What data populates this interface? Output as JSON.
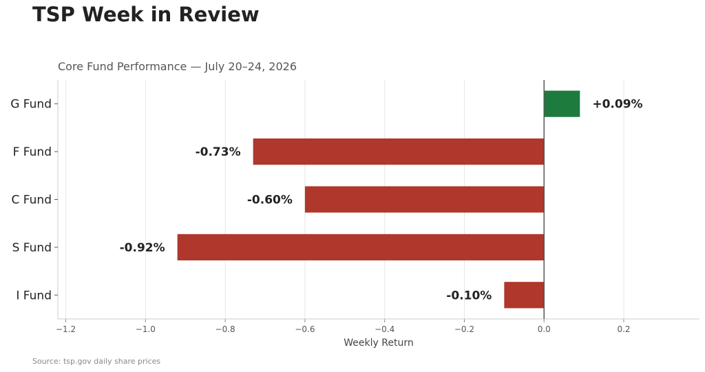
{
  "header": {
    "title": "TSP Week in Review",
    "subtitle": "Core Fund Performance — July 20–24, 2026",
    "source": "Source: tsp.gov daily share prices"
  },
  "chart_data": {
    "type": "bar",
    "orientation": "horizontal",
    "title": "Core Fund Performance — July 20–24, 2026",
    "xlabel": "Weekly Return",
    "ylabel": "",
    "categories": [
      "G Fund",
      "F Fund",
      "C Fund",
      "S Fund",
      "I Fund"
    ],
    "values": [
      0.09,
      -0.73,
      -0.6,
      -0.92,
      -0.1
    ],
    "data_labels": [
      "+0.09%",
      "-0.73%",
      "-0.60%",
      "-0.92%",
      "-0.10%"
    ],
    "xlim": [
      -1.22,
      0.39
    ],
    "x_ticks": [
      -1.2,
      -1.0,
      -0.8,
      -0.6,
      -0.4,
      -0.2,
      0.0,
      0.2
    ],
    "x_tick_labels": [
      "−1.2",
      "−1.0",
      "−0.8",
      "−0.6",
      "−0.4",
      "−0.2",
      "0.0",
      "0.2"
    ],
    "grid": "vertical",
    "legend": "none",
    "colors": {
      "positive": "#1e7b3e",
      "negative": "#b0372b",
      "zero_line": "#555555",
      "grid": "#e6e6e6"
    }
  }
}
